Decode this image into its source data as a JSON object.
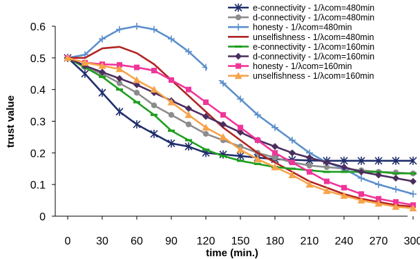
{
  "chart_data": {
    "type": "line",
    "title": "",
    "xlabel": "time (min.)",
    "ylabel": "trust value",
    "xlim": [
      0,
      300
    ],
    "ylim": [
      0,
      0.6
    ],
    "xticks": [
      0,
      30,
      60,
      90,
      120,
      150,
      180,
      210,
      240,
      270,
      300
    ],
    "yticks": [
      0,
      0.1,
      0.2,
      0.3,
      0.4,
      0.5,
      0.6
    ],
    "grid": false,
    "legend_position": "top-right",
    "x": [
      0,
      15,
      30,
      45,
      60,
      75,
      90,
      105,
      120,
      135,
      150,
      165,
      180,
      195,
      210,
      225,
      240,
      255,
      270,
      285,
      300
    ],
    "series": [
      {
        "name": "e-connectivity - 1/λcom=480min",
        "color": "#1f2d6b",
        "marker": "star",
        "values": [
          0.5,
          0.45,
          0.39,
          0.33,
          0.29,
          0.26,
          0.23,
          0.22,
          0.2,
          0.195,
          0.19,
          0.185,
          0.18,
          0.178,
          0.176,
          0.175,
          0.175,
          0.175,
          0.175,
          0.175,
          0.175
        ]
      },
      {
        "name": "d-connectivity - 1/λcom=480min",
        "color": "#8c8c8c",
        "marker": "circle",
        "values": [
          0.5,
          0.47,
          0.45,
          0.42,
          0.39,
          0.35,
          0.32,
          0.29,
          0.26,
          0.24,
          0.22,
          0.2,
          0.185,
          0.17,
          0.16,
          0.155,
          0.15,
          0.145,
          0.14,
          0.138,
          0.135
        ]
      },
      {
        "name": "honesty - 1/λcom=480min",
        "color": "#5b8fcc",
        "marker": "plus",
        "values": [
          0.5,
          0.51,
          0.56,
          0.59,
          0.6,
          0.59,
          0.56,
          0.52,
          0.47,
          0.42,
          0.37,
          0.32,
          0.28,
          0.24,
          0.2,
          0.17,
          0.15,
          0.12,
          0.1,
          0.085,
          0.07
        ]
      },
      {
        "name": "unselfishness - 1/λcom=480min",
        "color": "#b22222",
        "marker": "none",
        "values": [
          0.5,
          0.5,
          0.53,
          0.535,
          0.515,
          0.48,
          0.43,
          0.38,
          0.33,
          0.28,
          0.24,
          0.2,
          0.17,
          0.14,
          0.11,
          0.09,
          0.07,
          0.055,
          0.045,
          0.035,
          0.03
        ]
      },
      {
        "name": "e-connectivity - 1/λcom=160min",
        "color": "#1f9e1f",
        "marker": "dash",
        "values": [
          0.5,
          0.47,
          0.44,
          0.4,
          0.36,
          0.32,
          0.27,
          0.24,
          0.21,
          0.19,
          0.175,
          0.165,
          0.155,
          0.15,
          0.145,
          0.14,
          0.14,
          0.14,
          0.14,
          0.135,
          0.135
        ]
      },
      {
        "name": "d-connectivity - 1/λcom=160min",
        "color": "#4b2d5e",
        "marker": "diamond",
        "values": [
          0.5,
          0.475,
          0.455,
          0.435,
          0.415,
          0.39,
          0.365,
          0.34,
          0.315,
          0.29,
          0.265,
          0.24,
          0.22,
          0.2,
          0.185,
          0.17,
          0.155,
          0.14,
          0.13,
          0.12,
          0.11
        ]
      },
      {
        "name": "honesty - 1/λcom=160min",
        "color": "#f0359a",
        "marker": "square",
        "values": [
          0.5,
          0.485,
          0.48,
          0.478,
          0.47,
          0.46,
          0.43,
          0.4,
          0.36,
          0.32,
          0.28,
          0.24,
          0.2,
          0.17,
          0.14,
          0.11,
          0.09,
          0.07,
          0.055,
          0.045,
          0.035
        ]
      },
      {
        "name": "unselfishness - 1/λcom=160min",
        "color": "#f7a34a",
        "marker": "triangle",
        "values": [
          0.5,
          0.485,
          0.475,
          0.465,
          0.43,
          0.4,
          0.36,
          0.32,
          0.28,
          0.25,
          0.21,
          0.18,
          0.155,
          0.13,
          0.1,
          0.08,
          0.065,
          0.05,
          0.04,
          0.03,
          0.025
        ]
      }
    ]
  }
}
